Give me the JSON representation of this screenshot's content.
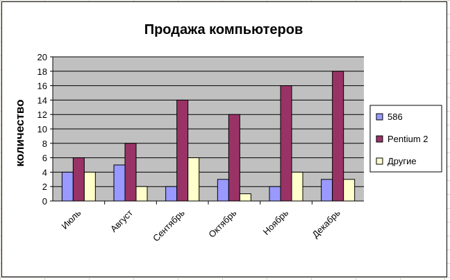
{
  "chart_data": {
    "type": "bar",
    "title": "Продажа компьютеров",
    "xlabel": "",
    "ylabel": "количество",
    "ylim": [
      0,
      20
    ],
    "yticks": [
      "0",
      "2",
      "4",
      "6",
      "8",
      "10",
      "12",
      "14",
      "16",
      "18",
      "20"
    ],
    "grid": true,
    "legend_position": "right",
    "categories": [
      "Июль",
      "Август",
      "Сентябрь",
      "Октябрь",
      "Ноябрь",
      "Декабрь"
    ],
    "series": [
      {
        "name": "586",
        "color": "#9999ff",
        "values": [
          4,
          5,
          2,
          3,
          2,
          3
        ]
      },
      {
        "name": "Pentium 2",
        "color": "#993366",
        "values": [
          6,
          8,
          14,
          12,
          16,
          18
        ]
      },
      {
        "name": "Другие",
        "color": "#ffffcc",
        "values": [
          4,
          2,
          6,
          1,
          4,
          3
        ]
      }
    ],
    "plot_background": "#c0c0c0"
  }
}
